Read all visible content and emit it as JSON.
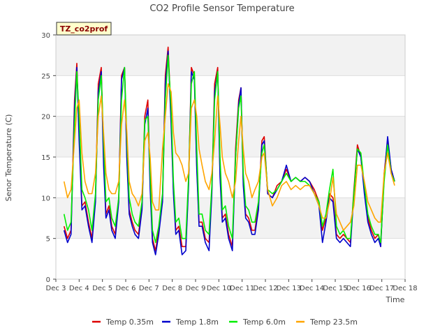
{
  "chart_data": {
    "type": "line",
    "title": "CO2 Profile Sensor Temperature",
    "xlabel": "Time",
    "ylabel": "Senor Temperature (C)",
    "annotation": "TZ_co2prof",
    "xlim": [
      3,
      18
    ],
    "ylim": [
      0,
      30
    ],
    "x_ticks": [
      3,
      4,
      5,
      6,
      7,
      8,
      9,
      10,
      11,
      12,
      13,
      14,
      15,
      16,
      17,
      18
    ],
    "x_tick_labels": [
      "Dec 3",
      "Dec 4",
      "Dec 5",
      "Dec 6",
      "Dec 7",
      "Dec 8",
      "Dec 9",
      "Dec 10",
      "Dec 11",
      "Dec 12",
      "Dec 13",
      "Dec 14",
      "Dec 15",
      "Dec 16",
      "Dec 17",
      "Dec 18"
    ],
    "y_ticks": [
      0,
      5,
      10,
      15,
      20,
      25,
      30
    ],
    "y_tick_labels": [
      "0",
      "5",
      "10",
      "15",
      "20",
      "25",
      "30"
    ],
    "grid": true,
    "legend_position": "bottom",
    "series": [
      {
        "name": "Temp 0.35m",
        "color": "#dd0000",
        "x": [
          3.35,
          3.5,
          3.65,
          3.8,
          3.9,
          4.0,
          4.12,
          4.25,
          4.4,
          4.55,
          4.7,
          4.82,
          4.95,
          5.05,
          5.15,
          5.28,
          5.4,
          5.55,
          5.7,
          5.82,
          5.95,
          6.05,
          6.15,
          6.28,
          6.4,
          6.55,
          6.7,
          6.82,
          6.95,
          7.05,
          7.15,
          7.28,
          7.42,
          7.58,
          7.7,
          7.82,
          7.95,
          8.05,
          8.15,
          8.28,
          8.42,
          8.58,
          8.7,
          8.82,
          8.95,
          9.05,
          9.15,
          9.28,
          9.42,
          9.58,
          9.7,
          9.82,
          9.95,
          10.05,
          10.15,
          10.28,
          10.42,
          10.58,
          10.72,
          10.85,
          10.95,
          11.05,
          11.15,
          11.28,
          11.42,
          11.55,
          11.7,
          11.85,
          11.95,
          12.1,
          12.3,
          12.5,
          12.7,
          12.9,
          13.1,
          13.3,
          13.5,
          13.7,
          13.9,
          14.1,
          14.3,
          14.45,
          14.6,
          14.75,
          14.9,
          15.05,
          15.2,
          15.35,
          15.5,
          15.65,
          15.8,
          15.95,
          16.1,
          16.25,
          16.4,
          16.55,
          16.7,
          16.85,
          16.95,
          17.1,
          17.25,
          17.4,
          17.55
        ],
        "y": [
          6.5,
          5.0,
          6.0,
          22.0,
          26.5,
          18.0,
          9.0,
          9.5,
          7.0,
          5.0,
          10.0,
          24.0,
          26.0,
          15.0,
          8.0,
          9.0,
          6.5,
          5.5,
          10.0,
          25.0,
          26.0,
          15.0,
          8.5,
          7.0,
          6.0,
          5.5,
          9.0,
          20.0,
          22.0,
          12.0,
          5.0,
          3.5,
          6.0,
          10.0,
          25.0,
          28.5,
          20.0,
          11.0,
          6.0,
          6.5,
          4.0,
          4.0,
          12.0,
          26.0,
          25.0,
          14.0,
          7.0,
          7.0,
          5.0,
          4.5,
          11.0,
          24.0,
          26.0,
          13.0,
          7.5,
          8.0,
          5.5,
          4.0,
          16.0,
          22.0,
          23.5,
          12.0,
          8.0,
          7.5,
          6.0,
          6.0,
          9.0,
          17.0,
          17.5,
          10.5,
          10.0,
          11.5,
          12.0,
          13.5,
          12.0,
          12.5,
          12.0,
          12.5,
          12.0,
          11.0,
          9.5,
          6.0,
          7.5,
          10.5,
          10.0,
          5.5,
          5.0,
          5.5,
          5.0,
          4.5,
          11.0,
          16.5,
          15.0,
          11.0,
          7.5,
          6.0,
          5.0,
          5.5,
          4.0,
          13.0,
          17.0,
          13.5,
          12.0
        ]
      },
      {
        "name": "Temp 1.8m",
        "color": "#0000cc",
        "x": [
          3.35,
          3.5,
          3.65,
          3.8,
          3.9,
          4.0,
          4.12,
          4.25,
          4.4,
          4.55,
          4.7,
          4.82,
          4.95,
          5.05,
          5.15,
          5.28,
          5.4,
          5.55,
          5.7,
          5.82,
          5.95,
          6.05,
          6.15,
          6.28,
          6.4,
          6.55,
          6.7,
          6.82,
          6.95,
          7.05,
          7.15,
          7.28,
          7.42,
          7.58,
          7.7,
          7.82,
          7.95,
          8.05,
          8.15,
          8.28,
          8.42,
          8.58,
          8.7,
          8.82,
          8.95,
          9.05,
          9.15,
          9.28,
          9.42,
          9.58,
          9.7,
          9.82,
          9.95,
          10.05,
          10.15,
          10.28,
          10.42,
          10.58,
          10.72,
          10.85,
          10.95,
          11.05,
          11.15,
          11.28,
          11.42,
          11.55,
          11.7,
          11.85,
          11.95,
          12.1,
          12.3,
          12.5,
          12.7,
          12.9,
          13.1,
          13.3,
          13.5,
          13.7,
          13.9,
          14.1,
          14.3,
          14.45,
          14.6,
          14.75,
          14.9,
          15.05,
          15.2,
          15.35,
          15.5,
          15.65,
          15.8,
          15.95,
          16.1,
          16.25,
          16.4,
          16.55,
          16.7,
          16.85,
          16.95,
          17.1,
          17.25,
          17.4,
          17.55
        ],
        "y": [
          6.0,
          4.5,
          5.5,
          21.0,
          26.0,
          17.0,
          8.5,
          9.0,
          6.5,
          4.5,
          9.5,
          23.0,
          25.5,
          14.0,
          7.5,
          8.5,
          6.0,
          5.0,
          9.5,
          24.5,
          26.0,
          14.5,
          8.0,
          6.5,
          5.5,
          5.0,
          8.5,
          19.0,
          21.0,
          11.0,
          4.5,
          3.0,
          5.5,
          9.5,
          24.0,
          28.0,
          19.0,
          10.5,
          5.5,
          6.0,
          3.0,
          3.5,
          11.5,
          25.5,
          24.5,
          13.5,
          6.5,
          6.5,
          4.5,
          3.5,
          10.5,
          23.0,
          25.5,
          12.5,
          7.0,
          7.5,
          5.0,
          3.5,
          15.0,
          21.5,
          23.5,
          11.5,
          7.5,
          7.0,
          5.5,
          5.5,
          8.5,
          16.5,
          17.0,
          10.5,
          10.0,
          11.0,
          12.0,
          14.0,
          12.0,
          12.5,
          12.0,
          12.5,
          12.0,
          10.5,
          9.0,
          4.5,
          7.0,
          10.0,
          9.5,
          5.0,
          4.5,
          5.0,
          4.5,
          4.0,
          10.5,
          16.0,
          15.0,
          10.5,
          7.0,
          5.5,
          4.5,
          5.0,
          4.0,
          12.5,
          17.5,
          13.5,
          12.0
        ]
      },
      {
        "name": "Temp 6.0m",
        "color": "#00ee00",
        "x": [
          3.35,
          3.5,
          3.65,
          3.8,
          3.9,
          4.0,
          4.12,
          4.25,
          4.4,
          4.55,
          4.7,
          4.82,
          4.95,
          5.05,
          5.15,
          5.28,
          5.4,
          5.55,
          5.7,
          5.82,
          5.95,
          6.05,
          6.15,
          6.28,
          6.4,
          6.55,
          6.7,
          6.82,
          6.95,
          7.05,
          7.15,
          7.28,
          7.42,
          7.58,
          7.7,
          7.82,
          7.95,
          8.05,
          8.15,
          8.28,
          8.42,
          8.58,
          8.7,
          8.82,
          8.95,
          9.05,
          9.15,
          9.28,
          9.42,
          9.58,
          9.7,
          9.82,
          9.95,
          10.05,
          10.15,
          10.28,
          10.42,
          10.58,
          10.72,
          10.85,
          10.95,
          11.05,
          11.15,
          11.28,
          11.42,
          11.55,
          11.7,
          11.85,
          11.95,
          12.1,
          12.3,
          12.5,
          12.7,
          12.9,
          13.1,
          13.3,
          13.5,
          13.7,
          13.9,
          14.1,
          14.3,
          14.45,
          14.6,
          14.75,
          14.9,
          15.05,
          15.2,
          15.35,
          15.5,
          15.65,
          15.8,
          15.95,
          16.1,
          16.25,
          16.4,
          16.55,
          16.7,
          16.85,
          16.95,
          17.1,
          17.25,
          17.4,
          17.55
        ],
        "y": [
          8.0,
          6.0,
          7.0,
          19.0,
          25.5,
          20.0,
          11.0,
          10.0,
          8.5,
          6.0,
          10.5,
          22.0,
          25.0,
          17.0,
          9.5,
          10.0,
          7.5,
          6.5,
          10.0,
          22.0,
          26.0,
          17.0,
          10.0,
          8.0,
          7.0,
          6.5,
          9.5,
          19.5,
          20.0,
          13.0,
          6.0,
          4.5,
          6.5,
          10.5,
          22.0,
          27.5,
          21.0,
          12.0,
          7.0,
          7.5,
          5.0,
          5.0,
          12.5,
          24.0,
          25.5,
          16.0,
          8.0,
          8.0,
          6.0,
          5.5,
          11.5,
          22.0,
          25.5,
          15.0,
          8.5,
          9.0,
          6.5,
          5.0,
          15.0,
          21.0,
          22.5,
          13.0,
          9.0,
          8.5,
          7.0,
          7.0,
          9.5,
          15.5,
          16.5,
          11.0,
          10.5,
          11.0,
          12.0,
          13.0,
          12.0,
          12.5,
          12.0,
          12.0,
          11.5,
          10.5,
          9.5,
          6.5,
          8.0,
          11.0,
          13.5,
          6.5,
          5.5,
          6.0,
          5.0,
          5.0,
          10.5,
          16.0,
          15.5,
          11.5,
          8.0,
          6.5,
          5.5,
          5.5,
          4.5,
          12.0,
          16.5,
          13.0,
          12.0
        ]
      },
      {
        "name": "Temp 23.5m",
        "color": "#ffa500",
        "x": [
          3.35,
          3.5,
          3.65,
          3.8,
          3.9,
          4.0,
          4.12,
          4.25,
          4.4,
          4.55,
          4.7,
          4.82,
          4.95,
          5.05,
          5.15,
          5.28,
          5.4,
          5.55,
          5.7,
          5.82,
          5.95,
          6.05,
          6.15,
          6.28,
          6.4,
          6.55,
          6.7,
          6.82,
          6.95,
          7.05,
          7.15,
          7.28,
          7.42,
          7.58,
          7.7,
          7.82,
          7.95,
          8.05,
          8.15,
          8.28,
          8.42,
          8.58,
          8.7,
          8.82,
          8.95,
          9.05,
          9.15,
          9.28,
          9.42,
          9.58,
          9.7,
          9.82,
          9.95,
          10.05,
          10.15,
          10.28,
          10.42,
          10.58,
          10.72,
          10.85,
          10.95,
          11.05,
          11.15,
          11.28,
          11.42,
          11.55,
          11.7,
          11.85,
          11.95,
          12.1,
          12.3,
          12.5,
          12.7,
          12.9,
          13.1,
          13.3,
          13.5,
          13.7,
          13.9,
          14.1,
          14.3,
          14.45,
          14.6,
          14.75,
          14.9,
          15.05,
          15.2,
          15.35,
          15.5,
          15.65,
          15.8,
          15.95,
          16.1,
          16.25,
          16.4,
          16.55,
          16.7,
          16.85,
          16.95,
          17.1,
          17.25,
          17.4,
          17.55
        ],
        "y": [
          12.0,
          10.0,
          11.0,
          17.0,
          21.0,
          22.0,
          15.5,
          12.0,
          10.5,
          10.5,
          13.0,
          20.0,
          22.5,
          18.0,
          13.0,
          11.0,
          10.5,
          10.5,
          12.0,
          19.0,
          22.0,
          18.0,
          12.0,
          10.5,
          10.0,
          9.0,
          10.5,
          17.0,
          18.0,
          15.0,
          9.5,
          8.5,
          8.5,
          16.0,
          20.0,
          24.0,
          23.0,
          18.0,
          15.5,
          15.0,
          14.0,
          12.0,
          13.0,
          21.0,
          22.0,
          20.0,
          16.0,
          14.0,
          12.0,
          11.0,
          13.0,
          17.0,
          22.5,
          19.0,
          15.0,
          13.0,
          12.0,
          10.0,
          12.0,
          17.0,
          20.0,
          16.0,
          13.0,
          12.0,
          10.0,
          11.0,
          12.0,
          15.0,
          15.5,
          11.0,
          9.0,
          10.0,
          11.5,
          12.0,
          11.0,
          11.5,
          11.0,
          11.5,
          11.5,
          10.5,
          9.0,
          7.5,
          7.5,
          9.5,
          12.5,
          8.0,
          7.0,
          6.0,
          6.5,
          7.0,
          9.0,
          14.0,
          14.0,
          12.0,
          9.5,
          8.5,
          7.5,
          7.0,
          7.0,
          13.0,
          15.5,
          13.0,
          11.5
        ]
      }
    ]
  }
}
